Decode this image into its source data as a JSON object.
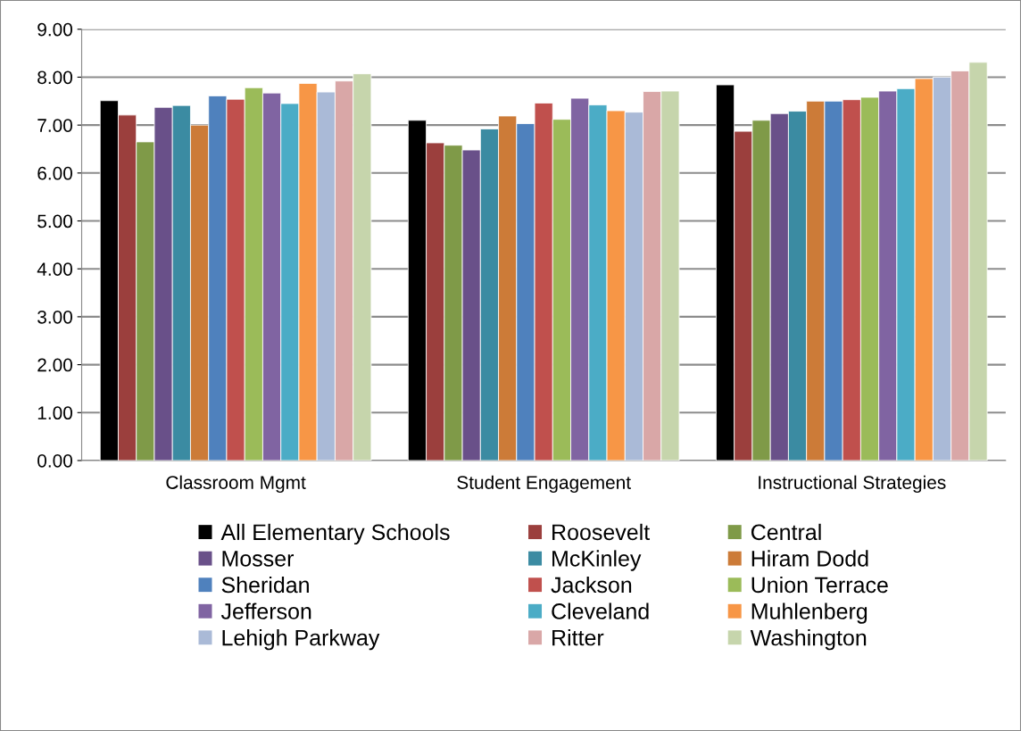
{
  "chart_data": {
    "type": "bar",
    "categories": [
      "Classroom Mgmt",
      "Student Engagement",
      "Instructional Strategies"
    ],
    "series": [
      {
        "name": "All Elementary Schools",
        "color": "#000000",
        "values": [
          7.51,
          7.1,
          7.84
        ]
      },
      {
        "name": "Roosevelt",
        "color": "#9b3f3d",
        "values": [
          7.21,
          6.63,
          6.87
        ]
      },
      {
        "name": "Central",
        "color": "#7f9a48",
        "values": [
          6.65,
          6.58,
          7.1
        ]
      },
      {
        "name": "Mosser",
        "color": "#695089",
        "values": [
          7.37,
          6.48,
          7.24
        ]
      },
      {
        "name": "McKinley",
        "color": "#3b8ba2",
        "values": [
          7.41,
          6.92,
          7.29
        ]
      },
      {
        "name": "Hiram Dodd",
        "color": "#cc7b38",
        "values": [
          7.0,
          7.19,
          7.5
        ]
      },
      {
        "name": "Sheridan",
        "color": "#4f81bd",
        "values": [
          7.61,
          7.03,
          7.5
        ]
      },
      {
        "name": "Jackson",
        "color": "#c0504d",
        "values": [
          7.54,
          7.46,
          7.53
        ]
      },
      {
        "name": "Union Terrace",
        "color": "#9bbb59",
        "values": [
          7.78,
          7.12,
          7.58
        ]
      },
      {
        "name": "Jefferson",
        "color": "#8064a2",
        "values": [
          7.67,
          7.56,
          7.71
        ]
      },
      {
        "name": "Cleveland",
        "color": "#4bacc6",
        "values": [
          7.45,
          7.42,
          7.76
        ]
      },
      {
        "name": "Muhlenberg",
        "color": "#f79646",
        "values": [
          7.87,
          7.3,
          7.97
        ]
      },
      {
        "name": "Lehigh Parkway",
        "color": "#aabad7",
        "values": [
          7.69,
          7.27,
          8.0
        ]
      },
      {
        "name": "Ritter",
        "color": "#d9a7a7",
        "values": [
          7.92,
          7.7,
          8.13
        ]
      },
      {
        "name": "Washington",
        "color": "#c6d5ac",
        "values": [
          8.07,
          7.71,
          8.31
        ]
      }
    ],
    "ylim": [
      0,
      9
    ],
    "yticks": [
      {
        "value": 0,
        "label": "0.00"
      },
      {
        "value": 1,
        "label": "1.00"
      },
      {
        "value": 2,
        "label": "2.00"
      },
      {
        "value": 3,
        "label": "3.00"
      },
      {
        "value": 4,
        "label": "4.00"
      },
      {
        "value": 5,
        "label": "5.00"
      },
      {
        "value": 6,
        "label": "6.00"
      },
      {
        "value": 7,
        "label": "7.00"
      },
      {
        "value": 8,
        "label": "8.00"
      },
      {
        "value": 9,
        "label": "9.00"
      }
    ],
    "grid": "y",
    "legend": "bottom"
  }
}
